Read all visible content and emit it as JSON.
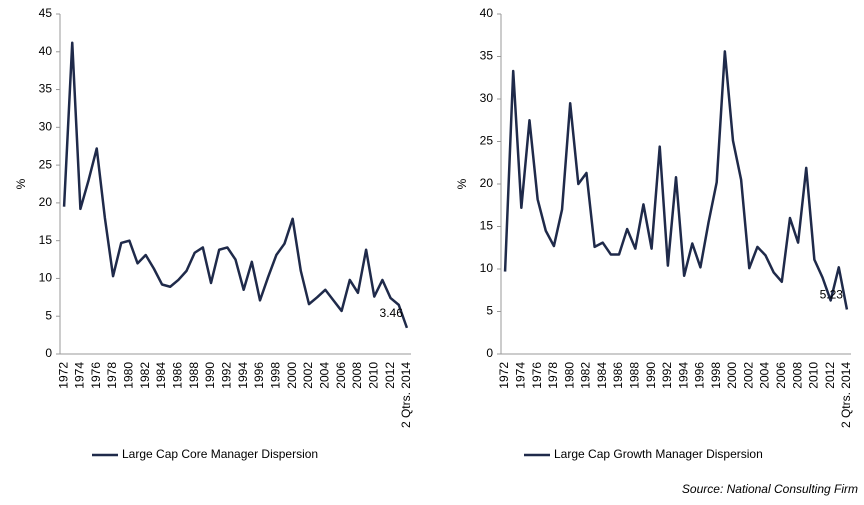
{
  "chart_data": [
    {
      "type": "line",
      "ylabel": "%",
      "categories": [
        "1972",
        null,
        "1974",
        null,
        "1976",
        null,
        "1978",
        null,
        "1980",
        null,
        "1982",
        null,
        "1984",
        null,
        "1986",
        null,
        "1988",
        null,
        "1990",
        null,
        "1992",
        null,
        "1994",
        null,
        "1996",
        null,
        "1998",
        null,
        "2000",
        null,
        "2002",
        null,
        "2004",
        null,
        "2006",
        null,
        "2008",
        null,
        "2010",
        null,
        "2012",
        null,
        "2 Qtrs. 2014"
      ],
      "series": [
        {
          "name": "Large Cap Core Manager Dispersion",
          "color": "#1f2a4a",
          "values": [
            19.5,
            41.2,
            19.2,
            23,
            27.2,
            18,
            10.3,
            14.7,
            15,
            12,
            13.1,
            11.3,
            9.2,
            8.9,
            9.8,
            11,
            13.4,
            14.1,
            9.4,
            13.8,
            14.1,
            12.5,
            8.5,
            12.2,
            7.1,
            10.2,
            13.1,
            14.6,
            17.9,
            11,
            6.6,
            7.5,
            8.5,
            7.1,
            5.7,
            9.8,
            8.1,
            13.8,
            7.6,
            9.8,
            7.4,
            6.5,
            3.46
          ]
        }
      ],
      "ylim": [
        0,
        45
      ],
      "yticks": [
        0,
        5,
        10,
        15,
        20,
        25,
        30,
        35,
        40,
        45
      ],
      "legend": "bottom"
    },
    {
      "type": "line",
      "ylabel": "%",
      "categories": [
        "1972",
        null,
        "1974",
        null,
        "1976",
        null,
        "1978",
        null,
        "1980",
        null,
        "1982",
        null,
        "1984",
        null,
        "1986",
        null,
        "1988",
        null,
        "1990",
        null,
        "1992",
        null,
        "1994",
        null,
        "1996",
        null,
        "1998",
        null,
        "2000",
        null,
        "2002",
        null,
        "2004",
        null,
        "2006",
        null,
        "2008",
        null,
        "2010",
        null,
        "2012",
        null,
        "2 Qtrs. 2014"
      ],
      "series": [
        {
          "name": "Large Cap Growth Manager Dispersion",
          "color": "#1f2a4a",
          "values": [
            9.7,
            33.3,
            17.2,
            27.5,
            18.2,
            14.5,
            12.7,
            17,
            29.5,
            20,
            21.3,
            12.6,
            13.1,
            11.7,
            11.7,
            14.7,
            12.4,
            17.6,
            12.4,
            24.4,
            10.4,
            20.8,
            9.2,
            13,
            10.2,
            15.5,
            20.2,
            35.6,
            25.1,
            20.5,
            10.1,
            12.6,
            11.6,
            9.6,
            8.5,
            16,
            13.1,
            21.9,
            11.1,
            9,
            6.3,
            10.2,
            5.23
          ]
        }
      ],
      "ylim": [
        0,
        40
      ],
      "yticks": [
        0,
        5,
        10,
        15,
        20,
        25,
        30,
        35,
        40
      ],
      "legend": "bottom"
    }
  ],
  "source": "Source: National Consulting Firm"
}
